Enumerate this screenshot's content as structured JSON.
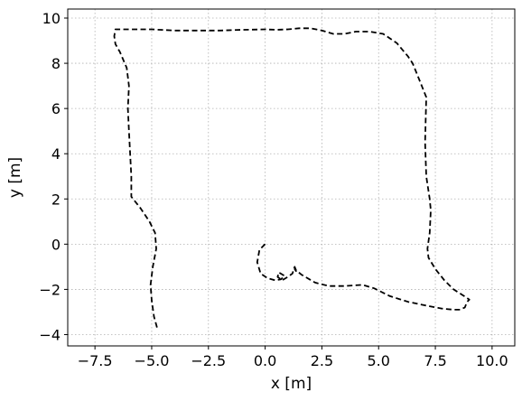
{
  "chart_data": {
    "type": "line",
    "title": "",
    "xlabel": "x [m]",
    "ylabel": "y [m]",
    "xlim": [
      -8.7,
      11.0
    ],
    "ylim": [
      -4.5,
      10.4
    ],
    "xticks": [
      -7.5,
      -5.0,
      -2.5,
      0.0,
      2.5,
      5.0,
      7.5,
      10.0
    ],
    "xtick_labels": [
      "−7.5",
      "−5.0",
      "−2.5",
      "0.0",
      "2.5",
      "5.0",
      "7.5",
      "10.0"
    ],
    "yticks": [
      -4,
      -2,
      0,
      2,
      4,
      6,
      8,
      10
    ],
    "ytick_labels": [
      "−4",
      "−2",
      "0",
      "2",
      "4",
      "6",
      "8",
      "10"
    ],
    "grid": true,
    "line_style": "dashed",
    "line_color": "#000000",
    "series": [
      {
        "x": [
          0.0,
          -0.25,
          -0.35,
          -0.2,
          0.1,
          0.45,
          0.7,
          0.85,
          0.6,
          0.55,
          0.75,
          1.0,
          1.2,
          1.3,
          1.4,
          1.3,
          1.6,
          2.2,
          2.8,
          3.5,
          4.3,
          4.8,
          5.5,
          6.3,
          7.0,
          7.8,
          8.3,
          8.6,
          8.8,
          8.9,
          9.0,
          8.7,
          8.3,
          7.9,
          7.5,
          7.2,
          7.15,
          7.25,
          7.3,
          7.25,
          7.1,
          7.05,
          7.1,
          6.9,
          6.7,
          6.5,
          6.3,
          5.8,
          5.2,
          4.6,
          4.0,
          3.5,
          3.0,
          2.5,
          2.0,
          1.5,
          1.0,
          0.5,
          0.0,
          -1.0,
          -2.0,
          -3.0,
          -4.0,
          -5.0,
          -6.0,
          -6.6,
          -6.65,
          -6.6,
          -6.4,
          -6.1,
          -6.0,
          -6.05,
          -6.0,
          -5.95,
          -5.9,
          -5.9,
          -5.5,
          -5.1,
          -4.85,
          -4.8,
          -4.95,
          -5.05,
          -5.0,
          -4.9,
          -4.75
        ],
        "y": [
          0.0,
          -0.25,
          -0.8,
          -1.3,
          -1.5,
          -1.6,
          -1.55,
          -1.4,
          -1.25,
          -1.45,
          -1.6,
          -1.45,
          -1.3,
          -1.0,
          -1.25,
          -1.1,
          -1.35,
          -1.7,
          -1.85,
          -1.85,
          -1.8,
          -1.95,
          -2.3,
          -2.55,
          -2.7,
          -2.85,
          -2.9,
          -2.9,
          -2.8,
          -2.55,
          -2.45,
          -2.25,
          -2.0,
          -1.6,
          -1.1,
          -0.6,
          -0.2,
          0.5,
          1.5,
          2.0,
          3.0,
          4.5,
          6.5,
          7.0,
          7.5,
          8.0,
          8.3,
          8.9,
          9.3,
          9.4,
          9.4,
          9.3,
          9.3,
          9.45,
          9.55,
          9.55,
          9.5,
          9.48,
          9.5,
          9.48,
          9.45,
          9.45,
          9.45,
          9.5,
          9.5,
          9.5,
          9.2,
          8.85,
          8.5,
          7.8,
          7.0,
          6.0,
          5.0,
          4.0,
          3.0,
          2.1,
          1.6,
          1.0,
          0.5,
          -0.2,
          -1.0,
          -1.8,
          -2.5,
          -3.2,
          -3.75
        ]
      }
    ]
  }
}
